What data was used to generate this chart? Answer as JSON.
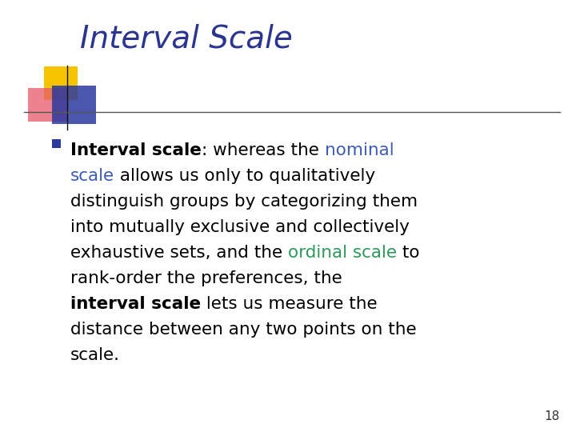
{
  "title": "Interval Scale",
  "title_color": "#2B3590",
  "title_fontsize": 28,
  "background_color": "#FFFFFF",
  "page_number": "18",
  "bullet_marker_color": "#2B3A9F",
  "line_color": "#444444",
  "deco_yellow": "#F5C400",
  "deco_red": "#E85868",
  "deco_blue": "#2B3A9F",
  "nominal_color": "#3B5BB5",
  "ordinal_color": "#2A9A5A",
  "lines_data": [
    [
      [
        "Interval scale",
        true,
        "#000000"
      ],
      [
        ": whereas the ",
        false,
        "#000000"
      ],
      [
        "nominal",
        false,
        "#3B5BB5"
      ]
    ],
    [
      [
        "scale",
        false,
        "#3B5BB5"
      ],
      [
        " allows us only to qualitatively",
        false,
        "#000000"
      ]
    ],
    [
      [
        "distinguish groups by categorizing them",
        false,
        "#000000"
      ]
    ],
    [
      [
        "into mutually exclusive and collectively",
        false,
        "#000000"
      ]
    ],
    [
      [
        "exhaustive sets, and the ",
        false,
        "#000000"
      ],
      [
        "ordinal scale",
        false,
        "#2A9A5A"
      ],
      [
        " to",
        false,
        "#000000"
      ]
    ],
    [
      [
        "rank-order the preferences, the",
        false,
        "#000000"
      ]
    ],
    [
      [
        "interval scale",
        true,
        "#000000"
      ],
      [
        " lets us measure the",
        false,
        "#000000"
      ]
    ],
    [
      [
        "distance between any two points on the",
        false,
        "#000000"
      ]
    ],
    [
      [
        "scale.",
        false,
        "#000000"
      ]
    ]
  ]
}
